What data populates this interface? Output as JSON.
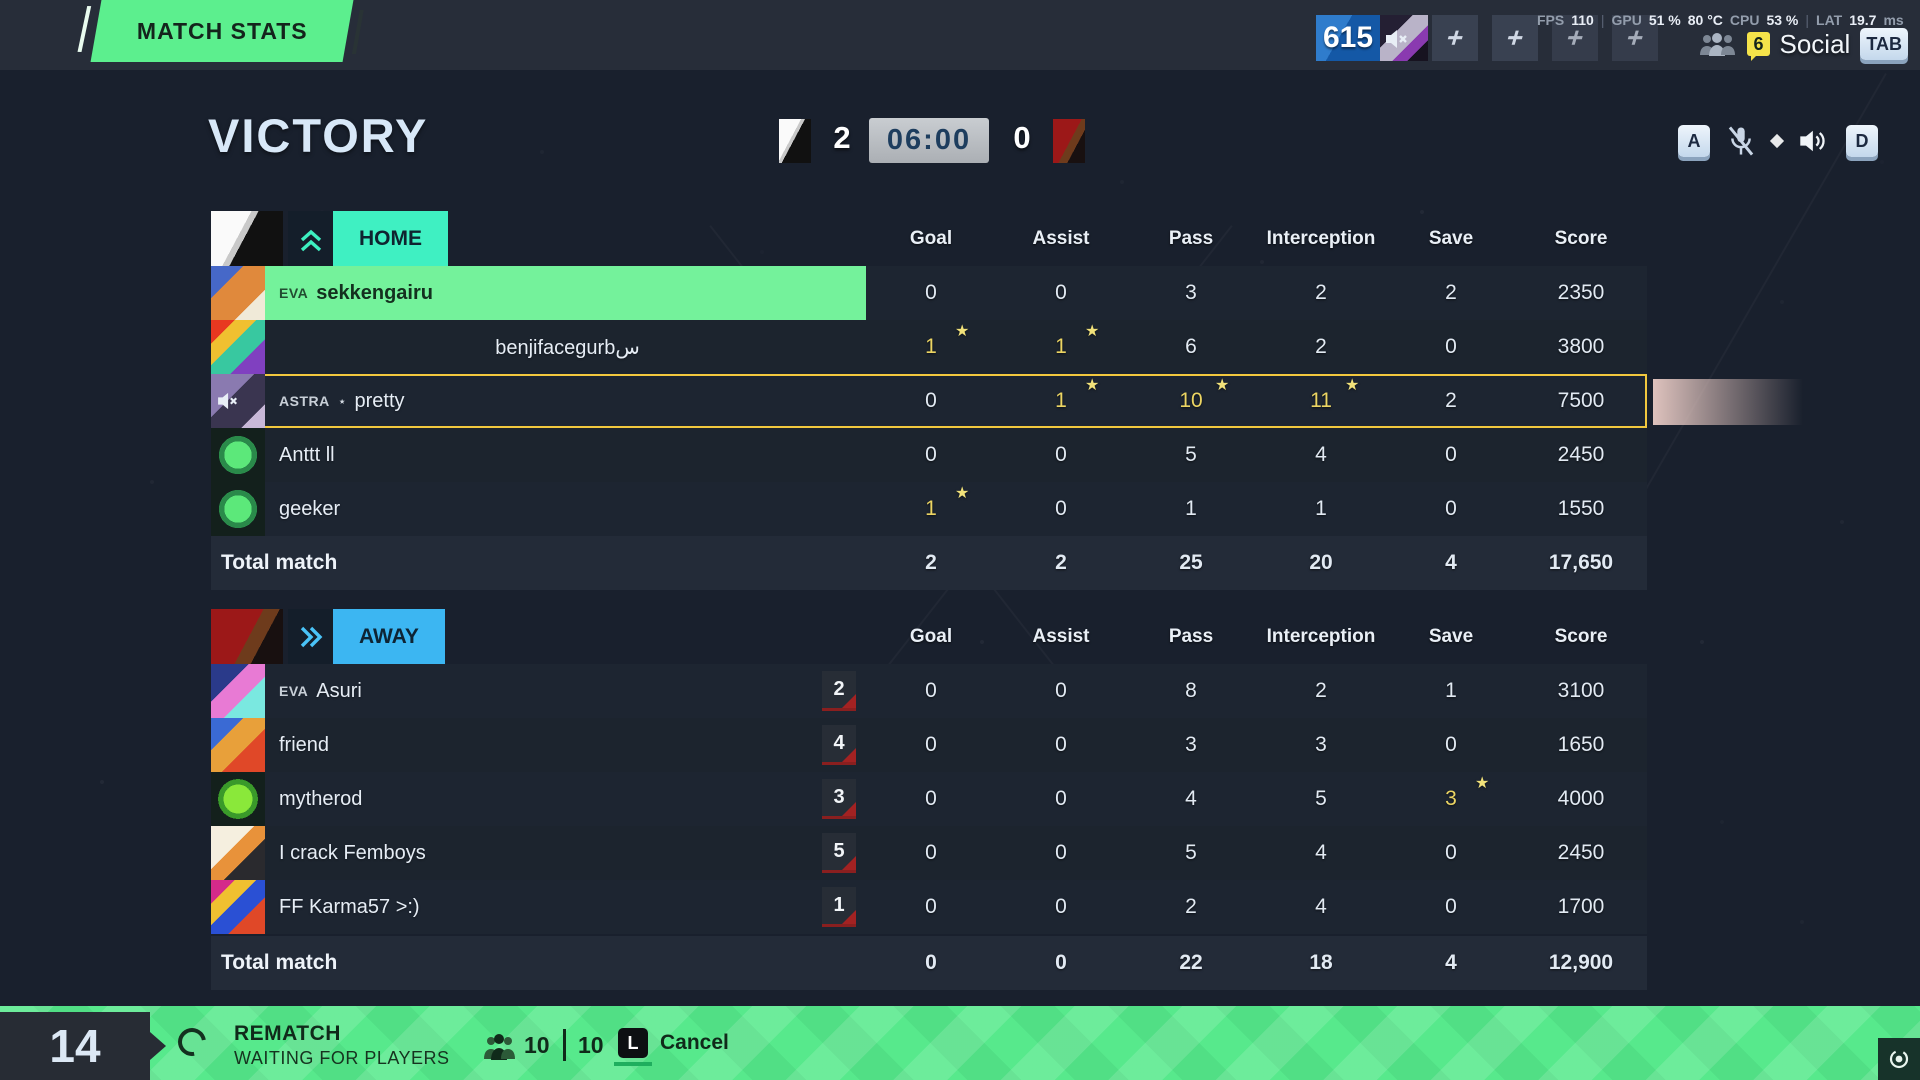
{
  "colors": {
    "home_accent": "#3ff0c2",
    "away_accent": "#3cb6f2",
    "highlight_green": "#74f29b",
    "selected_border": "#f2c83e",
    "star_yellow": "#efd95f",
    "banner_green": "#5cef8e",
    "bottom_green": "#57e98c"
  },
  "top_bar": {
    "banner": "MATCH STATS",
    "player_level": "615",
    "perf": {
      "fps_label": "FPS",
      "fps_value": "110",
      "gpu_label": "GPU",
      "gpu_value": "51 %",
      "gpu_temp": "80 °C",
      "party_count": "6",
      "cpu_label": "CPU",
      "cpu_value": "53 %",
      "lat_label": "LAT",
      "lat_value": "19.7",
      "lat_unit": "ms"
    },
    "social_label": "Social",
    "social_key": "TAB"
  },
  "scoreboard": {
    "result": "VICTORY",
    "home_score": "2",
    "timer": "06:00",
    "away_score": "0",
    "voice_prev_key": "A",
    "voice_next_key": "D"
  },
  "columns": [
    "Goal",
    "Assist",
    "Pass",
    "Interception",
    "Save",
    "Score"
  ],
  "home": {
    "label": "HOME",
    "players": [
      {
        "tag": "EVA",
        "name": "sekkengairu",
        "avatar": "corgi-avatar",
        "row_style": "green",
        "stats": [
          {
            "v": "0"
          },
          {
            "v": "0"
          },
          {
            "v": "3"
          },
          {
            "v": "2"
          },
          {
            "v": "2"
          },
          {
            "v": "2350"
          }
        ]
      },
      {
        "tag": "",
        "name": "benjifacegurbس",
        "avatar": "snake-avatar",
        "center": true,
        "stats": [
          {
            "v": "1",
            "star": true,
            "hl": true
          },
          {
            "v": "1",
            "star": true,
            "hl": true
          },
          {
            "v": "6"
          },
          {
            "v": "2"
          },
          {
            "v": "0"
          },
          {
            "v": "3800"
          }
        ]
      },
      {
        "tag": "ASTRA",
        "sep": "⋆",
        "name": "pretty",
        "avatar": "pretty-avatar",
        "muted": true,
        "row_style": "selected",
        "stats": [
          {
            "v": "0"
          },
          {
            "v": "1",
            "star": true,
            "hl": true
          },
          {
            "v": "10",
            "star": true,
            "hl": true
          },
          {
            "v": "11",
            "star": true,
            "hl": true
          },
          {
            "v": "2"
          },
          {
            "v": "7500"
          }
        ]
      },
      {
        "tag": "",
        "name": "Anttt ll",
        "avatar": "ball-avatar",
        "stats": [
          {
            "v": "0"
          },
          {
            "v": "0"
          },
          {
            "v": "5"
          },
          {
            "v": "4"
          },
          {
            "v": "0"
          },
          {
            "v": "2450"
          }
        ]
      },
      {
        "tag": "",
        "name": "geeker",
        "avatar": "ball-avatar",
        "stats": [
          {
            "v": "1",
            "star": true,
            "hl": true
          },
          {
            "v": "0"
          },
          {
            "v": "1"
          },
          {
            "v": "1"
          },
          {
            "v": "0"
          },
          {
            "v": "1550"
          }
        ]
      }
    ],
    "total_label": "Total match",
    "totals": [
      "2",
      "2",
      "25",
      "20",
      "4",
      "17,650"
    ]
  },
  "away": {
    "label": "AWAY",
    "players": [
      {
        "tag": "EVA",
        "name": "Asuri",
        "avatar": "fairy-avatar",
        "badge": "2",
        "stats": [
          {
            "v": "0"
          },
          {
            "v": "0"
          },
          {
            "v": "8"
          },
          {
            "v": "2"
          },
          {
            "v": "1"
          },
          {
            "v": "3100"
          }
        ]
      },
      {
        "tag": "",
        "name": "friend",
        "avatar": "parrot-avatar",
        "badge": "4",
        "stats": [
          {
            "v": "0"
          },
          {
            "v": "0"
          },
          {
            "v": "3"
          },
          {
            "v": "3"
          },
          {
            "v": "0"
          },
          {
            "v": "1650"
          }
        ]
      },
      {
        "tag": "",
        "name": "mytherod",
        "avatar": "greenball-avatar",
        "badge": "3",
        "stats": [
          {
            "v": "0"
          },
          {
            "v": "0"
          },
          {
            "v": "4"
          },
          {
            "v": "5"
          },
          {
            "v": "3",
            "star": true,
            "hl": true
          },
          {
            "v": "4000"
          }
        ]
      },
      {
        "tag": "",
        "name": "I crack Femboys",
        "avatar": "anime-avatar",
        "badge": "5",
        "stats": [
          {
            "v": "0"
          },
          {
            "v": "0"
          },
          {
            "v": "5"
          },
          {
            "v": "4"
          },
          {
            "v": "0"
          },
          {
            "v": "2450"
          }
        ]
      },
      {
        "tag": "",
        "name": "FF Karma57 >:)",
        "avatar": "psy-avatar",
        "badge": "1",
        "stats": [
          {
            "v": "0"
          },
          {
            "v": "0"
          },
          {
            "v": "2"
          },
          {
            "v": "4"
          },
          {
            "v": "0"
          },
          {
            "v": "1700"
          }
        ]
      }
    ],
    "total_label": "Total match",
    "totals": [
      "0",
      "0",
      "22",
      "18",
      "4",
      "12,900"
    ]
  },
  "bottom_bar": {
    "countdown": "14",
    "title": "REMATCH",
    "subtitle": "WAITING FOR PLAYERS",
    "players_current": "10",
    "players_max": "10",
    "cancel_key": "L",
    "cancel_label": "Cancel"
  }
}
